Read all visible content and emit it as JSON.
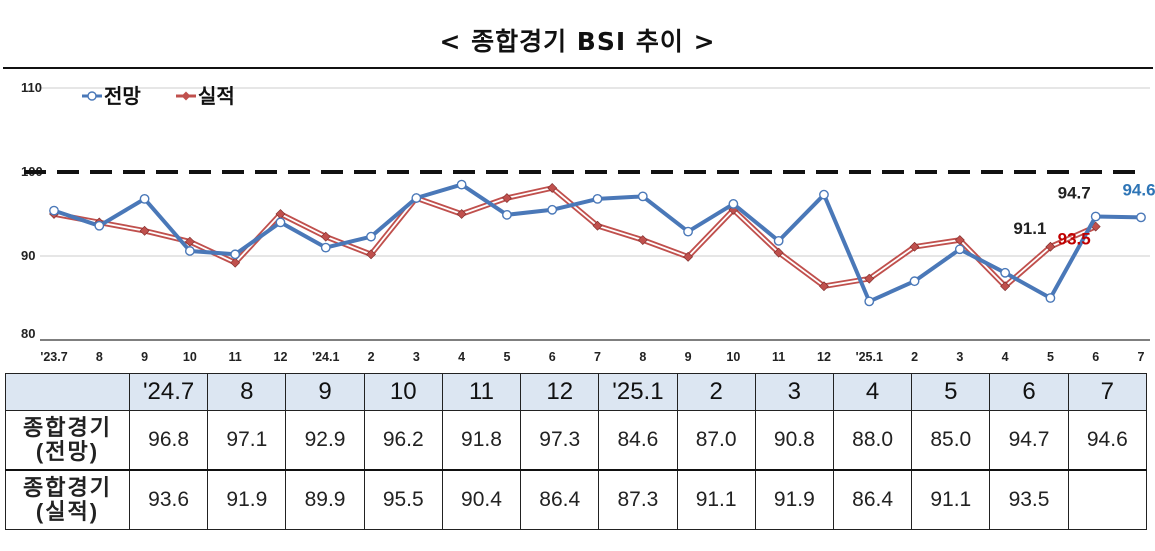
{
  "title": "< 종합경기 BSI 추이 >",
  "chart_data": {
    "type": "line",
    "title": "< 종합경기 BSI 추이 >",
    "x": [
      "'23.7",
      "8",
      "9",
      "10",
      "11",
      "12",
      "'24.1",
      "2",
      "3",
      "4",
      "5",
      "6",
      "7",
      "8",
      "9",
      "10",
      "11",
      "12",
      "'25.1",
      "2",
      "3",
      "4",
      "5",
      "6",
      "7"
    ],
    "ylim": [
      80,
      110
    ],
    "yticks": [
      80,
      90,
      100,
      110
    ],
    "reference_line": 100,
    "legend_position": "top-left",
    "grid": true,
    "series": [
      {
        "name": "전망",
        "color": "#4a78b8",
        "values": [
          95.4,
          93.6,
          96.8,
          90.6,
          90.2,
          94.0,
          91.0,
          92.3,
          96.9,
          98.5,
          94.9,
          95.5,
          96.8,
          97.1,
          92.9,
          96.2,
          91.8,
          97.3,
          84.6,
          87.0,
          90.8,
          88.0,
          85.0,
          94.7,
          94.6
        ]
      },
      {
        "name": "실적",
        "color": "#c0504d",
        "values": [
          95.0,
          94.0,
          93.0,
          91.7,
          89.2,
          95.0,
          92.3,
          90.2,
          96.9,
          95.0,
          96.9,
          98.1,
          93.6,
          91.9,
          89.9,
          95.5,
          90.4,
          86.4,
          87.3,
          91.1,
          91.9,
          86.4,
          91.1,
          93.5,
          null
        ]
      }
    ],
    "annotations": [
      {
        "label": "91.1",
        "series": "실적",
        "index": 22,
        "color": "#222222"
      },
      {
        "label": "94.7",
        "series": "전망",
        "index": 23,
        "color": "#222222"
      },
      {
        "label": "94.6",
        "series": "전망",
        "index": 24,
        "color": "#2e75b6"
      },
      {
        "label": "93.5",
        "series": "실적",
        "index": 23,
        "color": "#c00000"
      }
    ]
  },
  "table": {
    "headers": [
      "",
      "'24.7",
      "8",
      "9",
      "10",
      "11",
      "12",
      "'25.1",
      "2",
      "3",
      "4",
      "5",
      "6",
      "7"
    ],
    "rows": [
      {
        "label_line1": "종합경기",
        "label_line2": "(전망)",
        "cells": [
          "96.8",
          "97.1",
          "92.9",
          "96.2",
          "91.8",
          "97.3",
          "84.6",
          "87.0",
          "90.8",
          "88.0",
          "85.0",
          "94.7",
          "94.6"
        ]
      },
      {
        "label_line1": "종합경기",
        "label_line2": "(실적)",
        "cells": [
          "93.6",
          "91.9",
          "89.9",
          "95.5",
          "90.4",
          "86.4",
          "87.3",
          "91.1",
          "91.9",
          "86.4",
          "91.1",
          "93.5",
          ""
        ]
      }
    ]
  }
}
